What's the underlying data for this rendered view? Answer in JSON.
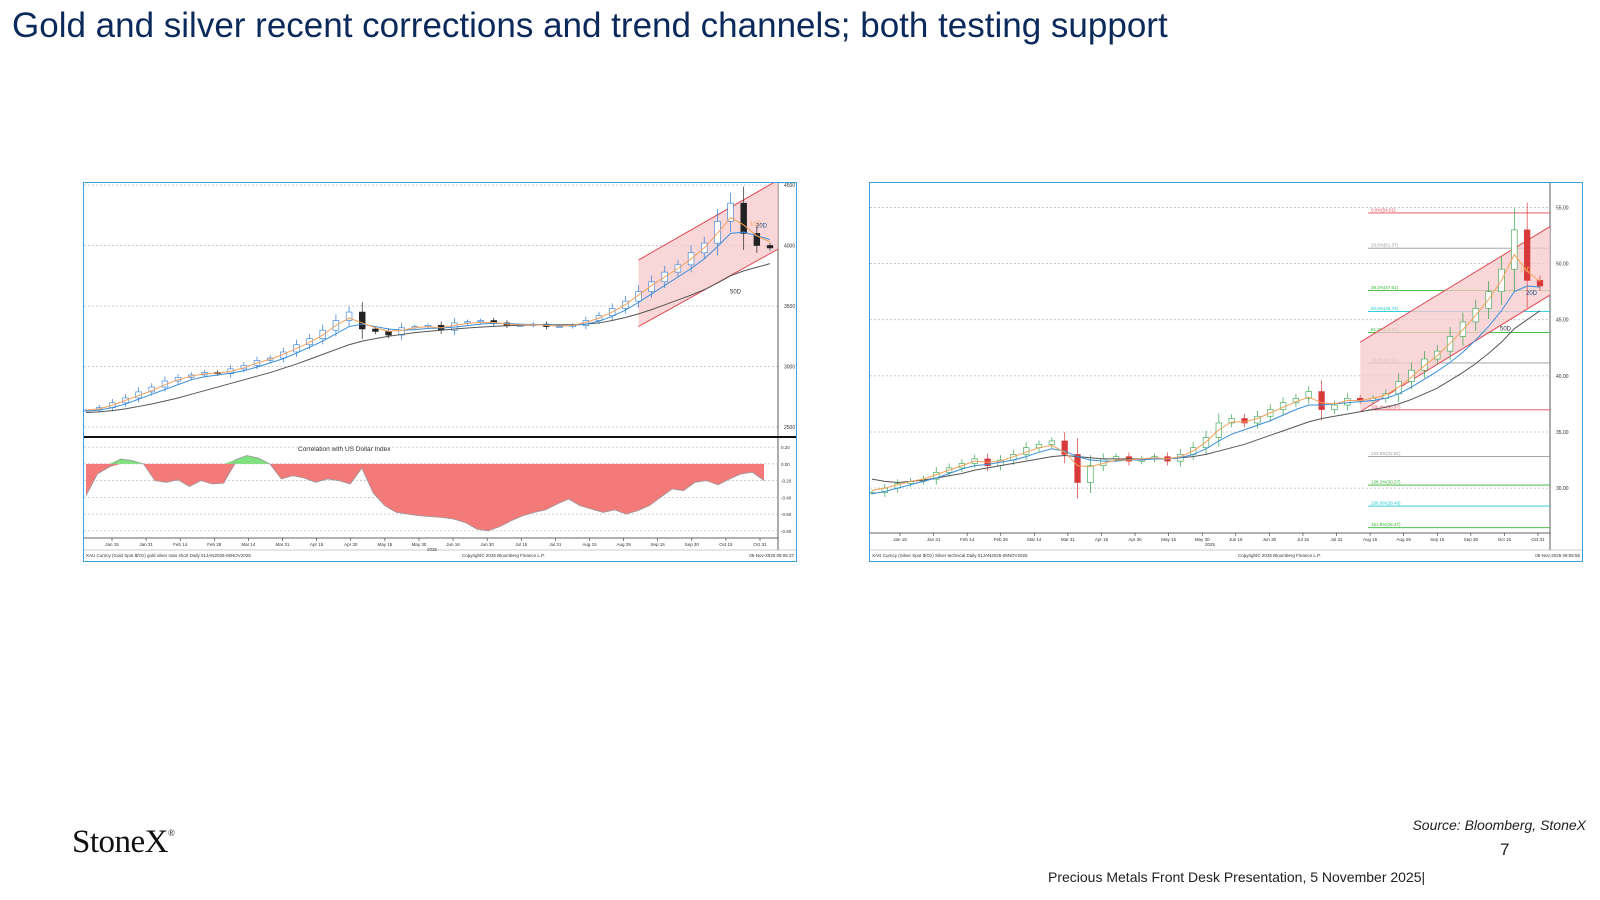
{
  "page": {
    "title": "Gold and silver recent corrections and trend channels; both testing support",
    "logo": "StoneX",
    "source": "Source: Bloomberg, StoneX",
    "page_number": "7",
    "footer": "Precious Metals Front Desk Presentation, 5 November 2025|"
  },
  "colors": {
    "title": "#0b2a5b",
    "frame": "#3aa0e0",
    "candle_up": "#2b7bd6",
    "ma10": "#f5a05a",
    "ma20": "#3a8fd8",
    "ma50": "#555555",
    "channel_fill": "#f7c9cc",
    "channel_line": "#e04a55",
    "corr_fill": "#f47a7a",
    "corr_pos": "#7fe07f"
  },
  "chart_data": [
    {
      "type": "line",
      "subtype": "candlestick",
      "footer_left": "XAU Curncy (Gold Spot $/Oz) gold silver ratio short Daily 01JAN2025-05NOV2025",
      "footer_mid": "Copyright© 2025 Bloomberg Finance L.P.",
      "footer_right": "05-Nov-2025 08:06:37",
      "x_ticks": [
        "Jan 15",
        "Jan 31",
        "Feb 14",
        "Feb 28",
        "Mar 14",
        "Mar 31",
        "Apr 15",
        "Apr 30",
        "May 15",
        "May 30",
        "Jun 16",
        "Jun 30",
        "Jul 15",
        "Jul 31",
        "Aug 15",
        "Aug 29",
        "Sep 15",
        "Sep 30",
        "Oct 15",
        "Oct 31"
      ],
      "year_label": "2025",
      "y_ticks": [
        "4500",
        "4000",
        "3500",
        "3000",
        "2500"
      ],
      "ylim": [
        2500,
        4500
      ],
      "ma_labels": [
        "10D",
        "20D",
        "50D"
      ],
      "series_close": [
        2640,
        2660,
        2700,
        2740,
        2790,
        2830,
        2880,
        2910,
        2930,
        2950,
        2940,
        2980,
        3010,
        3050,
        3070,
        3120,
        3180,
        3230,
        3300,
        3380,
        3450,
        3310,
        3290,
        3260,
        3320,
        3330,
        3340,
        3300,
        3360,
        3370,
        3380,
        3360,
        3340,
        3340,
        3350,
        3330,
        3330,
        3340,
        3380,
        3420,
        3480,
        3540,
        3620,
        3700,
        3780,
        3840,
        3940,
        4020,
        4200,
        4350,
        4100,
        4000,
        3980
      ],
      "ma10": [
        2640,
        2650,
        2680,
        2720,
        2760,
        2800,
        2850,
        2890,
        2920,
        2940,
        2945,
        2960,
        2990,
        3030,
        3060,
        3100,
        3150,
        3200,
        3260,
        3340,
        3400,
        3360,
        3320,
        3290,
        3300,
        3320,
        3330,
        3320,
        3340,
        3355,
        3365,
        3365,
        3350,
        3345,
        3345,
        3340,
        3335,
        3340,
        3365,
        3400,
        3450,
        3510,
        3590,
        3670,
        3740,
        3810,
        3890,
        3980,
        4100,
        4230,
        4170,
        4080,
        4030
      ],
      "ma20": [
        2630,
        2640,
        2660,
        2690,
        2730,
        2770,
        2810,
        2850,
        2890,
        2915,
        2930,
        2945,
        2965,
        2995,
        3030,
        3065,
        3110,
        3160,
        3210,
        3270,
        3330,
        3350,
        3330,
        3310,
        3300,
        3305,
        3315,
        3318,
        3325,
        3338,
        3350,
        3357,
        3355,
        3350,
        3347,
        3345,
        3340,
        3340,
        3350,
        3375,
        3415,
        3465,
        3530,
        3600,
        3670,
        3740,
        3810,
        3890,
        3990,
        4100,
        4110,
        4080,
        4050
      ],
      "ma50": [
        2620,
        2625,
        2635,
        2650,
        2670,
        2690,
        2715,
        2740,
        2770,
        2800,
        2830,
        2860,
        2890,
        2920,
        2950,
        2985,
        3020,
        3060,
        3100,
        3140,
        3180,
        3210,
        3230,
        3250,
        3265,
        3280,
        3290,
        3300,
        3310,
        3318,
        3325,
        3332,
        3337,
        3340,
        3343,
        3345,
        3345,
        3346,
        3350,
        3360,
        3380,
        3405,
        3435,
        3470,
        3510,
        3550,
        3590,
        3635,
        3690,
        3750,
        3790,
        3820,
        3850
      ],
      "channel": {
        "start_index": 42,
        "lower": [
          3330,
          3970
        ],
        "upper": [
          3880,
          4540
        ]
      },
      "correlation": {
        "label": "Correlation with US Dollar Index",
        "y_ticks": [
          "0.20",
          "0.00",
          "-0.20",
          "-0.40",
          "-0.60",
          "-0.80"
        ],
        "ylim": [
          -0.85,
          0.25
        ],
        "values": [
          -0.38,
          -0.12,
          -0.04,
          0.06,
          0.04,
          0.0,
          -0.2,
          -0.22,
          -0.19,
          -0.27,
          -0.2,
          -0.24,
          -0.23,
          0.05,
          0.1,
          0.07,
          0.0,
          -0.18,
          -0.14,
          -0.17,
          -0.22,
          -0.18,
          -0.2,
          -0.24,
          -0.05,
          -0.35,
          -0.5,
          -0.58,
          -0.6,
          -0.62,
          -0.63,
          -0.64,
          -0.66,
          -0.7,
          -0.78,
          -0.8,
          -0.75,
          -0.68,
          -0.62,
          -0.58,
          -0.55,
          -0.48,
          -0.42,
          -0.5,
          -0.54,
          -0.58,
          -0.55,
          -0.6,
          -0.56,
          -0.5,
          -0.4,
          -0.3,
          -0.32,
          -0.22,
          -0.2,
          -0.25,
          -0.18,
          -0.12,
          -0.1,
          -0.2
        ]
      }
    },
    {
      "type": "line",
      "subtype": "candlestick",
      "footer_left": "XAG Curncy (Silver Spot $/Oz) Silver technical Daily 01JAN2025-05NOV2025",
      "footer_mid": "Copyright© 2025 Bloomberg Finance L.P.",
      "footer_right": "05-Nov-2025 08:06:56",
      "x_ticks": [
        "Jan 15",
        "Jan 31",
        "Feb 14",
        "Feb 28",
        "Mar 14",
        "Mar 31",
        "Apr 15",
        "Apr 30",
        "May 15",
        "May 30",
        "Jun 16",
        "Jun 30",
        "Jul 15",
        "Jul 31",
        "Aug 15",
        "Aug 29",
        "Sep 15",
        "Sep 30",
        "Oct 15",
        "Oct 31"
      ],
      "year_label": "2025",
      "y_ticks": [
        "55.00",
        "50.00",
        "45.00",
        "40.00",
        "35.00",
        "30.00"
      ],
      "ylim": [
        26,
        57
      ],
      "ma_labels": [
        "10D",
        "20D",
        "50D"
      ],
      "fib_levels": [
        {
          "label": "0.0%(54.51)",
          "value": 54.51,
          "color": "#e04a55"
        },
        {
          "label": "23.6%(51.37)",
          "value": 51.37,
          "color": "#999999"
        },
        {
          "label": "38.2%(47.61)",
          "value": 47.61,
          "color": "#2fb52f"
        },
        {
          "label": "50.0%(45.74)",
          "value": 45.74,
          "color": "#18c8d8"
        },
        {
          "label": "61.8%(43.87)",
          "value": 43.87,
          "color": "#2fb52f"
        },
        {
          "label": "76.4%(41.15)",
          "value": 41.15,
          "color": "#999999"
        },
        {
          "label": "100.0%(36.97)",
          "value": 36.97,
          "color": "#e04a55"
        },
        {
          "label": "123.6%(32.81)",
          "value": 32.81,
          "color": "#999999"
        },
        {
          "label": "138.2%(30.27)",
          "value": 30.27,
          "color": "#2fb52f"
        },
        {
          "label": "150.0%(28.40)",
          "value": 28.4,
          "color": "#18c8d8"
        },
        {
          "label": "161.8%(26.47)",
          "value": 26.47,
          "color": "#2fb52f"
        }
      ],
      "series_close": [
        29.6,
        30.0,
        30.4,
        30.6,
        30.8,
        31.4,
        31.8,
        32.2,
        32.6,
        32.0,
        32.5,
        33.0,
        33.6,
        33.9,
        34.2,
        33.0,
        30.5,
        32.0,
        32.6,
        32.8,
        32.4,
        32.6,
        32.8,
        32.4,
        33.0,
        33.6,
        34.5,
        35.8,
        36.2,
        35.8,
        36.4,
        37.0,
        37.6,
        38.0,
        38.6,
        37.0,
        37.4,
        38.0,
        37.8,
        38.0,
        38.4,
        39.5,
        40.5,
        41.5,
        42.2,
        43.5,
        44.8,
        46.0,
        47.5,
        49.5,
        53.0,
        48.5,
        48.0
      ],
      "ma10": [
        29.8,
        30.0,
        30.3,
        30.6,
        30.8,
        31.2,
        31.6,
        32.0,
        32.4,
        32.3,
        32.4,
        32.8,
        33.2,
        33.6,
        33.8,
        33.2,
        32.0,
        31.9,
        32.2,
        32.5,
        32.5,
        32.6,
        32.7,
        32.6,
        32.8,
        33.3,
        34.1,
        35.2,
        35.9,
        35.9,
        36.2,
        36.7,
        37.2,
        37.7,
        38.1,
        37.6,
        37.5,
        37.8,
        37.8,
        38.0,
        38.3,
        39.0,
        39.9,
        40.9,
        41.8,
        42.9,
        44.1,
        45.4,
        46.8,
        48.5,
        50.8,
        49.3,
        48.4
      ],
      "ma20": [
        29.5,
        29.7,
        30.0,
        30.3,
        30.6,
        30.9,
        31.3,
        31.7,
        32.0,
        32.1,
        32.3,
        32.5,
        32.8,
        33.2,
        33.5,
        33.3,
        32.8,
        32.5,
        32.4,
        32.4,
        32.5,
        32.5,
        32.6,
        32.6,
        32.7,
        33.0,
        33.5,
        34.2,
        34.8,
        35.2,
        35.6,
        36.0,
        36.5,
        37.0,
        37.4,
        37.4,
        37.5,
        37.6,
        37.7,
        37.8,
        38.0,
        38.4,
        39.0,
        39.7,
        40.4,
        41.2,
        42.1,
        43.2,
        44.4,
        45.8,
        47.5,
        48.0,
        47.9
      ],
      "ma50": [
        30.8,
        30.6,
        30.5,
        30.6,
        30.7,
        30.9,
        31.1,
        31.3,
        31.6,
        31.8,
        32.0,
        32.2,
        32.4,
        32.6,
        32.8,
        32.9,
        32.8,
        32.7,
        32.6,
        32.6,
        32.6,
        32.6,
        32.6,
        32.6,
        32.7,
        32.8,
        33.0,
        33.3,
        33.6,
        33.9,
        34.3,
        34.7,
        35.1,
        35.5,
        35.9,
        36.2,
        36.4,
        36.6,
        36.8,
        37.0,
        37.2,
        37.5,
        37.9,
        38.4,
        38.9,
        39.6,
        40.3,
        41.1,
        42.0,
        43.0,
        44.2,
        45.0,
        45.8
      ],
      "channel": {
        "start_index": 38,
        "lower": [
          36.8,
          47.2
        ],
        "upper": [
          43.0,
          53.3
        ]
      }
    }
  ]
}
